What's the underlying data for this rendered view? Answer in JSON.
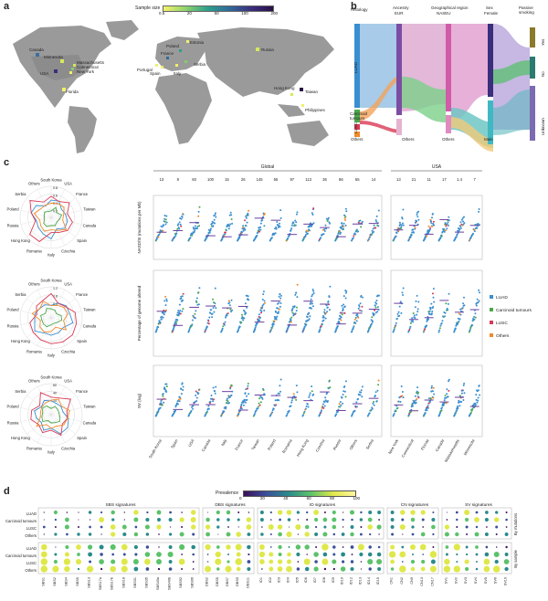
{
  "panels": {
    "a": "a",
    "b": "b",
    "c": "c",
    "d": "d"
  },
  "map": {
    "colorbar_title": "Sample size",
    "colorbar_ticks": [
      "0.5",
      "20",
      "50",
      "100",
      "200"
    ],
    "labels": [
      {
        "text": "Canada"
      },
      {
        "text": "Minnesota"
      },
      {
        "text": "USA"
      },
      {
        "text": "Massachusetts"
      },
      {
        "text": "Connecticut"
      },
      {
        "text": "New York"
      },
      {
        "text": "Florida"
      },
      {
        "text": "Estonia"
      },
      {
        "text": "Russia"
      },
      {
        "text": "Portugal"
      },
      {
        "text": "Spain"
      },
      {
        "text": "Italy"
      },
      {
        "text": "Serbia"
      },
      {
        "text": "Taiwan"
      },
      {
        "text": "Hong Kong"
      },
      {
        "text": "Philippines"
      },
      {
        "text": "Poland"
      },
      {
        "text": "France"
      }
    ]
  },
  "sankey": {
    "columns": [
      "Histology",
      "Ancestry",
      "Geographical region",
      "Sex",
      "Passive smoking"
    ],
    "col_sub": [
      "",
      "EUR",
      "NASEU",
      "Female",
      ""
    ],
    "left_labels": [
      "LUAD",
      "Carcinoid tumours",
      "LUSC",
      "Others"
    ],
    "bottom_labels": [
      "Others",
      "Others",
      "Male"
    ],
    "right_labels": [
      "Yes",
      "No",
      "Unknown"
    ]
  },
  "radar": {
    "countries": [
      "South Korea",
      "USA",
      "France",
      "Taiwan",
      "Canada",
      "Spain",
      "Czechia",
      "Italy",
      "Romania",
      "Hong Kong",
      "Russia",
      "Poland",
      "Serbia",
      "Others"
    ],
    "ticks1": [
      "0.8",
      "0.6",
      "0.4",
      "0.2"
    ],
    "ticks2": [
      "1.2",
      "0.8",
      "0.4"
    ],
    "ticks3": [
      "60",
      "40",
      "20"
    ]
  },
  "strip": {
    "global_label": "Global",
    "usa_label": "USA",
    "global_counts": [
      "13",
      "9",
      "60",
      "100",
      "15",
      "26",
      "145",
      "55",
      "97",
      "113",
      "36",
      "86",
      "55",
      "14"
    ],
    "usa_counts": [
      "13",
      "21",
      "11",
      "17",
      "1.4",
      "7"
    ],
    "y1_label": "NASD/SI (mutations per Mb)",
    "y2_label": "Percentage of genome altered",
    "y3_label": "SV (log)",
    "global_x": [
      "South Korea",
      "Spain",
      "USA",
      "Canada",
      "Italy",
      "France",
      "Taiwan",
      "Poland",
      "Romania",
      "Hong Kong",
      "Czechia",
      "Russia",
      "Others",
      "Serbia"
    ],
    "usa_x": [
      "New York",
      "Connecticut",
      "Florida",
      "Canada",
      "Massachusetts",
      "Minnesota"
    ],
    "legend": [
      "LUAD",
      "Carcinoid tumours",
      "LUSC",
      "Others"
    ]
  },
  "heatmap": {
    "colorbar_title": "Prevalence",
    "colorbar_ticks": [
      "0",
      "20",
      "40",
      "60",
      "80",
      "100"
    ],
    "groups": [
      "SBS signatures",
      "DBS signatures",
      "ID signatures",
      "CN signatures",
      "SV signatures"
    ],
    "rows": [
      "LUAD",
      "Carcinoid tumours",
      "LUSC",
      "Others"
    ],
    "side_top": "By mutations",
    "side_bottom": "By sample",
    "sbs_cols": [
      "SBS1",
      "SBS2",
      "SBS4",
      "SBS5",
      "SBS13",
      "SBS17a",
      "SBS17b",
      "SBS18",
      "SBS31",
      "SBS35",
      "SBS40a",
      "SBS40b",
      "SBS92",
      "SBS96"
    ],
    "dbs_cols": [
      "DBS2",
      "DBS5",
      "DBS7",
      "DBS9",
      "DBS11"
    ],
    "id_cols": [
      "ID1",
      "ID2",
      "ID3",
      "ID4",
      "ID5",
      "ID6",
      "ID7",
      "ID8",
      "ID9",
      "ID10",
      "ID12",
      "ID13",
      "ID14",
      "ID15"
    ],
    "cn_cols": [
      "CN1",
      "CN2",
      "CN9",
      "CN13",
      "CN17"
    ],
    "sv_cols": [
      "SV1",
      "SV2",
      "SV3",
      "SV4",
      "SV5",
      "SV6",
      "SV10"
    ]
  },
  "colors": {
    "luad": "#3a8fd0",
    "carcinoid": "#4aa84a",
    "lusc": "#d93a55",
    "others": "#f08a2a",
    "land": "#9a9a9a",
    "median": "#6a3e9e"
  }
}
